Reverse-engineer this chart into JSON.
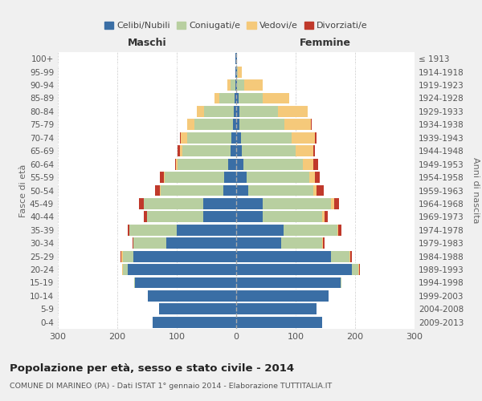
{
  "age_groups": [
    "0-4",
    "5-9",
    "10-14",
    "15-19",
    "20-24",
    "25-29",
    "30-34",
    "35-39",
    "40-44",
    "45-49",
    "50-54",
    "55-59",
    "60-64",
    "65-69",
    "70-74",
    "75-79",
    "80-84",
    "85-89",
    "90-94",
    "95-99",
    "100+"
  ],
  "birth_years": [
    "2009-2013",
    "2004-2008",
    "1999-2003",
    "1994-1998",
    "1989-1993",
    "1984-1988",
    "1979-1983",
    "1974-1978",
    "1969-1973",
    "1964-1968",
    "1959-1963",
    "1954-1958",
    "1949-1953",
    "1944-1948",
    "1939-1943",
    "1934-1938",
    "1929-1933",
    "1924-1928",
    "1919-1923",
    "1914-1918",
    "≤ 1913"
  ],
  "maschi": {
    "celibi": [
      140,
      130,
      148,
      170,
      183,
      173,
      118,
      100,
      55,
      55,
      22,
      20,
      14,
      10,
      8,
      5,
      4,
      3,
      2,
      1,
      1
    ],
    "coniugati": [
      0,
      0,
      0,
      2,
      8,
      18,
      55,
      80,
      95,
      100,
      105,
      100,
      85,
      80,
      75,
      65,
      50,
      25,
      8,
      1,
      0
    ],
    "vedovi": [
      0,
      0,
      0,
      0,
      1,
      2,
      0,
      0,
      0,
      1,
      1,
      1,
      2,
      5,
      10,
      12,
      12,
      8,
      5,
      0,
      0
    ],
    "divorziati": [
      0,
      0,
      0,
      0,
      0,
      1,
      2,
      2,
      6,
      8,
      8,
      8,
      2,
      3,
      2,
      1,
      0,
      0,
      0,
      0,
      0
    ]
  },
  "femmine": {
    "nubili": [
      145,
      135,
      155,
      175,
      195,
      160,
      75,
      80,
      45,
      45,
      20,
      18,
      12,
      10,
      8,
      6,
      5,
      4,
      2,
      1,
      1
    ],
    "coniugate": [
      0,
      0,
      0,
      2,
      10,
      30,
      70,
      90,
      100,
      115,
      110,
      105,
      100,
      90,
      85,
      75,
      65,
      40,
      12,
      2,
      0
    ],
    "vedove": [
      0,
      0,
      0,
      0,
      2,
      2,
      1,
      2,
      3,
      5,
      5,
      10,
      18,
      30,
      40,
      45,
      50,
      45,
      30,
      6,
      1
    ],
    "divorziate": [
      0,
      0,
      0,
      0,
      1,
      2,
      3,
      5,
      6,
      8,
      12,
      8,
      8,
      2,
      2,
      1,
      0,
      0,
      0,
      0,
      0
    ]
  },
  "colors": {
    "celibi": "#3A6EA5",
    "coniugati": "#B8CFA0",
    "vedovi": "#F5C97A",
    "divorziati": "#C0392B"
  },
  "title": "Popolazione per età, sesso e stato civile - 2014",
  "subtitle": "COMUNE DI MARINEO (PA) - Dati ISTAT 1° gennaio 2014 - Elaborazione TUTTITALIA.IT",
  "xlabel_left": "Maschi",
  "xlabel_right": "Femmine",
  "ylabel_left": "Fasce di età",
  "ylabel_right": "Anni di nascita",
  "xlim": 300,
  "bg_color": "#f0f0f0",
  "plot_bg": "#ffffff"
}
